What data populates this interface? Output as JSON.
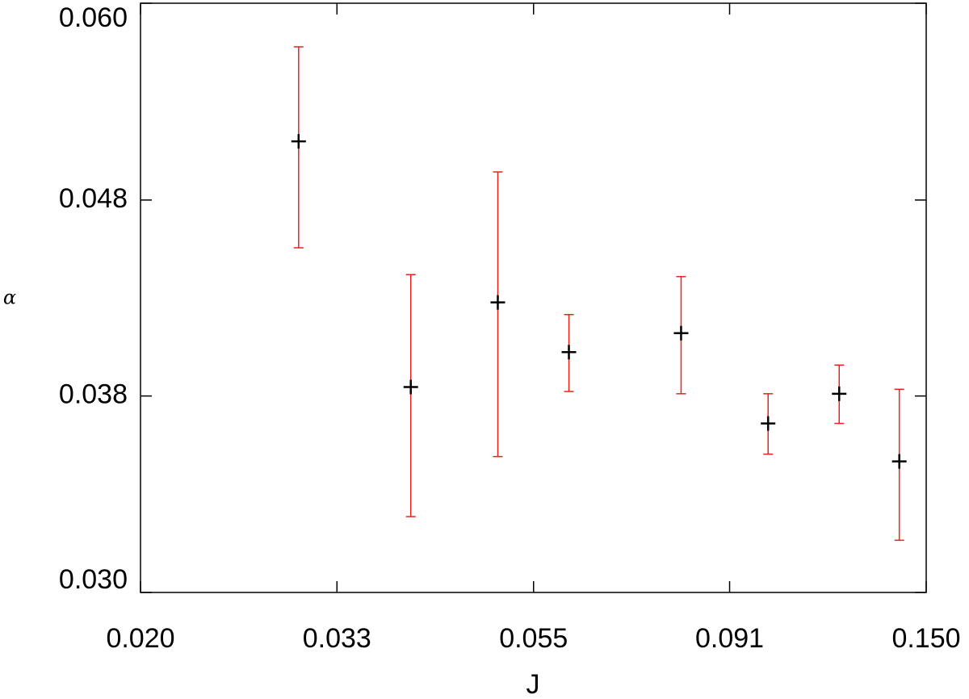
{
  "chart_data": {
    "type": "scatter",
    "xlabel": "J",
    "ylabel": "α",
    "x": [
      0.03,
      0.04,
      0.05,
      0.06,
      0.08,
      0.1,
      0.12,
      0.14
    ],
    "values": [
      0.051,
      0.0382,
      0.0422,
      0.0398,
      0.0407,
      0.0366,
      0.0379,
      0.035
    ],
    "errors": [
      0.006,
      0.0054,
      0.007,
      0.0018,
      0.0028,
      0.0013,
      0.0013,
      0.0031
    ],
    "marker_color": "#000000",
    "error_color": "#e8231e",
    "log_x": true,
    "log_y": true,
    "xlim": [
      0.02,
      0.15
    ],
    "ylim": [
      0.03,
      0.06
    ],
    "xticks": [
      {
        "value": 0.02,
        "label": "0.020"
      },
      {
        "value": 0.0331,
        "label": "0.033"
      },
      {
        "value": 0.0548,
        "label": "0.055"
      },
      {
        "value": 0.0906,
        "label": "0.091"
      },
      {
        "value": 0.15,
        "label": "0.150"
      }
    ],
    "yticks": [
      {
        "value": 0.03,
        "label": "0.030"
      },
      {
        "value": 0.0378,
        "label": "0.038"
      },
      {
        "value": 0.0476,
        "label": "0.048"
      },
      {
        "value": 0.06,
        "label": "0.060"
      }
    ]
  }
}
